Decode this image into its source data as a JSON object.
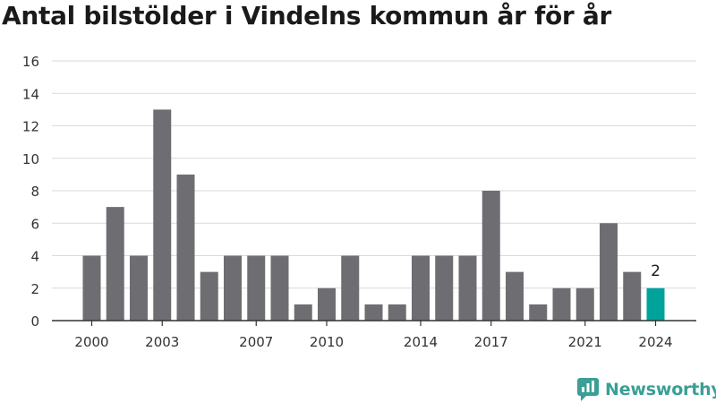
{
  "chart_data": {
    "type": "bar",
    "title": "Antal bilstölder i Vindelns kommun år för år",
    "x": [
      2000,
      2001,
      2002,
      2003,
      2004,
      2005,
      2006,
      2007,
      2008,
      2009,
      2010,
      2011,
      2012,
      2013,
      2014,
      2015,
      2016,
      2017,
      2018,
      2019,
      2020,
      2021,
      2022,
      2023,
      2024
    ],
    "values": [
      4,
      7,
      4,
      13,
      9,
      3,
      4,
      4,
      4,
      1,
      2,
      4,
      1,
      1,
      4,
      4,
      4,
      8,
      3,
      1,
      2,
      2,
      6,
      3,
      2
    ],
    "x_tick_labels": [
      "2000",
      "2003",
      "2007",
      "2010",
      "2014",
      "2017",
      "2021",
      "2024"
    ],
    "y_tick_labels": [
      "0",
      "2",
      "4",
      "6",
      "8",
      "10",
      "12",
      "14",
      "16"
    ],
    "ylim": [
      0,
      16
    ],
    "grid": "horizontal",
    "highlight": {
      "x": 2024,
      "label": "2"
    },
    "colors": {
      "bar": "#6e6d72",
      "highlight": "#00a39a",
      "grid": "#d9d9d9",
      "axis": "#333333"
    }
  },
  "brand": {
    "name": "Newsworthy",
    "icon": "newsworthy-logo-icon",
    "color": "#3a9f95"
  }
}
